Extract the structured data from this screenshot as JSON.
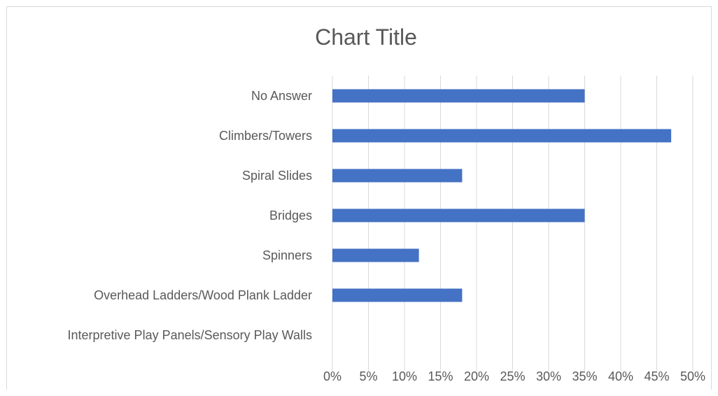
{
  "chart_data": {
    "type": "bar",
    "orientation": "horizontal",
    "title": "Chart Title",
    "xlabel": "",
    "ylabel": "",
    "categories": [
      "No Answer",
      "Climbers/Towers",
      "Spiral Slides",
      "Bridges",
      "Spinners",
      "Overhead Ladders/Wood Plank Ladder",
      "Interpretive Play Panels/Sensory Play Walls"
    ],
    "values": [
      35,
      47,
      18,
      35,
      12,
      18,
      0
    ],
    "x_tick_labels": [
      "0%",
      "5%",
      "10%",
      "15%",
      "20%",
      "25%",
      "30%",
      "35%",
      "40%",
      "45%",
      "50%"
    ],
    "xlim": [
      0,
      50
    ],
    "value_unit": "%",
    "grid": true,
    "legend": "none",
    "colors": {
      "bar": "#4472c4",
      "grid": "#d9d9d9",
      "text": "#595959"
    }
  }
}
